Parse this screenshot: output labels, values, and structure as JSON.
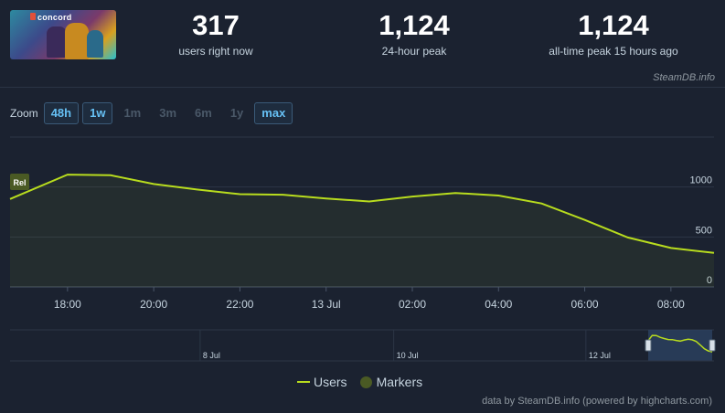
{
  "stats": [
    {
      "value": "317",
      "label": "users right now"
    },
    {
      "value": "1,124",
      "label": "24-hour peak"
    },
    {
      "value": "1,124",
      "label": "all-time peak 15 hours ago"
    }
  ],
  "thumbnail": {
    "logo_text": "concord"
  },
  "credit_top": "SteamDB.info",
  "zoom": {
    "label": "Zoom",
    "buttons": [
      {
        "label": "48h",
        "active": true
      },
      {
        "label": "1w",
        "active": true
      },
      {
        "label": "1m",
        "active": false
      },
      {
        "label": "3m",
        "active": false
      },
      {
        "label": "6m",
        "active": false
      },
      {
        "label": "1y",
        "active": false
      },
      {
        "label": "max",
        "active": true
      }
    ]
  },
  "chart_data": {
    "type": "area",
    "x": [
      "16:40",
      "18:00",
      "19:00",
      "20:00",
      "21:00",
      "22:00",
      "23:00",
      "00:00",
      "01:00",
      "02:00",
      "03:00",
      "04:00",
      "05:00",
      "06:00",
      "07:00",
      "08:00",
      "09:00"
    ],
    "series": [
      {
        "name": "Users",
        "color": "#b8dc1e",
        "values": [
          880,
          1124,
          1118,
          1030,
          975,
          928,
          923,
          885,
          855,
          905,
          940,
          915,
          835,
          670,
          495,
          390,
          340
        ]
      }
    ],
    "x_tick_labels": [
      "18:00",
      "20:00",
      "22:00",
      "13 Jul",
      "02:00",
      "04:00",
      "06:00",
      "08:00"
    ],
    "y_tick_labels": [
      "0",
      "500",
      "1000"
    ],
    "ylim": [
      0,
      1500
    ],
    "grid": true,
    "marker": {
      "label": "Rel",
      "x": "16:40"
    },
    "navigator_labels": [
      "8 Jul",
      "10 Jul",
      "12 Jul"
    ],
    "legend": [
      {
        "name": "Users"
      },
      {
        "name": "Markers"
      }
    ],
    "legend_position": "bottom-center"
  },
  "credit_bottom": "data by SteamDB.info (powered by highcharts.com)"
}
